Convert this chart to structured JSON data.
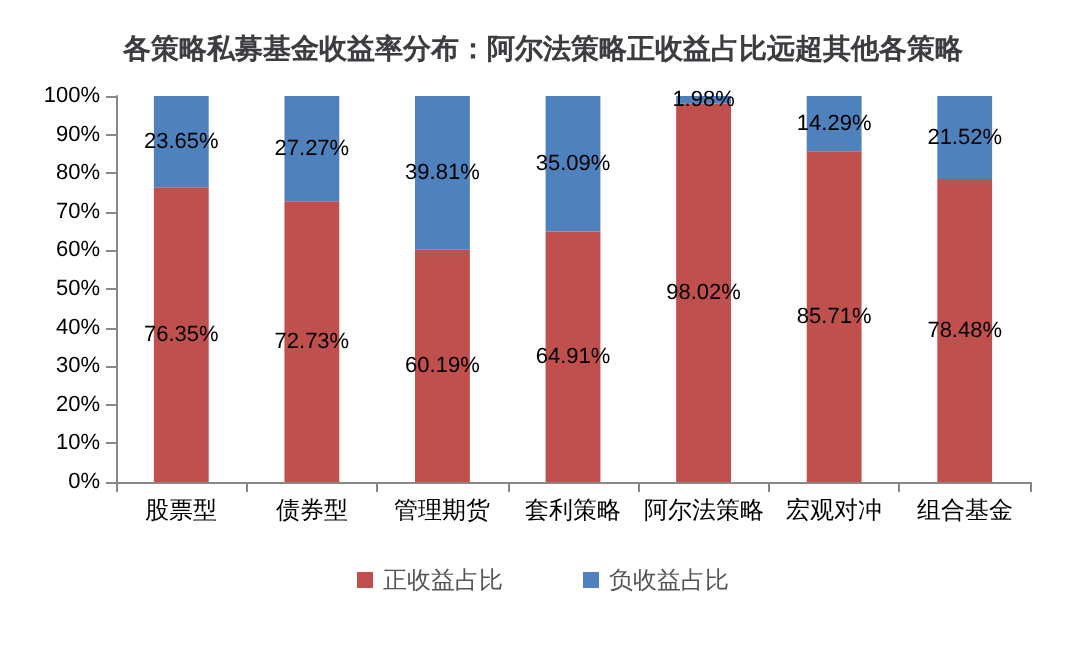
{
  "chart_data": {
    "type": "bar",
    "title": "各策略私募基金收益率分布：阿尔法策略正收益占比远超其他各策略",
    "categories": [
      "股票型",
      "债券型",
      "管理期货",
      "套利策略",
      "阿尔法策略",
      "宏观对冲",
      "组合基金"
    ],
    "stacked": true,
    "grid": false,
    "legend": "bottom",
    "ylim": [
      0,
      100
    ],
    "yticks": [
      {
        "value": 0,
        "label": "0%"
      },
      {
        "value": 10,
        "label": "10%"
      },
      {
        "value": 20,
        "label": "20%"
      },
      {
        "value": 30,
        "label": "30%"
      },
      {
        "value": 40,
        "label": "40%"
      },
      {
        "value": 50,
        "label": "50%"
      },
      {
        "value": 60,
        "label": "60%"
      },
      {
        "value": 70,
        "label": "70%"
      },
      {
        "value": 80,
        "label": "80%"
      },
      {
        "value": 90,
        "label": "90%"
      },
      {
        "value": 100,
        "label": "100%"
      }
    ],
    "series": [
      {
        "name": "正收益占比",
        "color": "#c0504d",
        "values": [
          76.35,
          72.73,
          60.19,
          64.91,
          98.02,
          85.71,
          78.48
        ],
        "value_labels": [
          "76.35%",
          "72.73%",
          "60.19%",
          "64.91%",
          "98.02%",
          "85.71%",
          "78.48%"
        ]
      },
      {
        "name": "负收益占比",
        "color": "#4f81bd",
        "values": [
          23.65,
          27.27,
          39.81,
          35.09,
          1.98,
          14.29,
          21.52
        ],
        "value_labels": [
          "23.65%",
          "27.27%",
          "39.81%",
          "35.09%",
          "1.98%",
          "14.29%",
          "21.52%"
        ]
      }
    ]
  }
}
